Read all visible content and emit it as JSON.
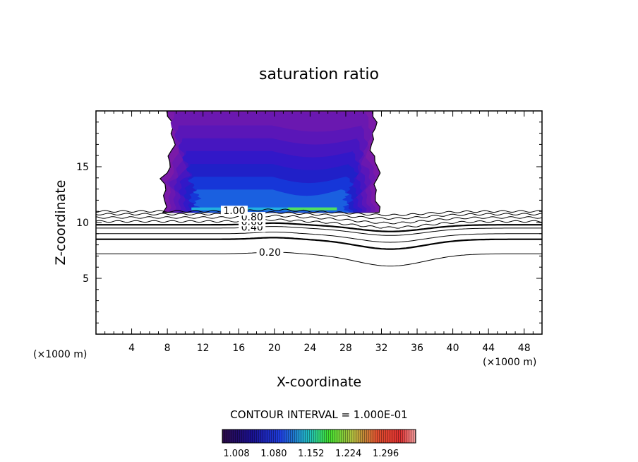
{
  "chart_data": {
    "type": "contour",
    "title": "saturation ratio",
    "xlabel": "X-coordinate",
    "ylabel": "Z-coordinate",
    "x_unit_left": "(×1000 m)",
    "x_unit_right": "(×1000 m)",
    "xlim": [
      0,
      50
    ],
    "ylim": [
      0,
      20
    ],
    "x_ticks": [
      4,
      8,
      12,
      16,
      20,
      24,
      28,
      32,
      36,
      40,
      44,
      48
    ],
    "y_ticks": [
      5,
      10,
      15
    ],
    "contour_interval_label": "CONTOUR INTERVAL = 1.000E-01",
    "contour_lines": [
      {
        "label": "0.20",
        "base_z": 7.2,
        "dip": 1.0,
        "bold": false
      },
      {
        "label": "",
        "base_z": 8.5,
        "dip": 0.8,
        "bold": true
      },
      {
        "label": "",
        "base_z": 9.0,
        "dip": 0.7,
        "bold": false
      },
      {
        "label": "0.40",
        "base_z": 9.5,
        "dip": 0.6,
        "bold": false
      },
      {
        "label": "",
        "base_z": 9.8,
        "dip": 0.55,
        "bold": true
      },
      {
        "label": "0.60",
        "base_z": 10.1,
        "dip": 0.5,
        "bold": false
      },
      {
        "label": "0.80",
        "base_z": 10.45,
        "dip": 0.45,
        "bold": false
      },
      {
        "label": "",
        "base_z": 10.75,
        "dip": 0.35,
        "bold": false
      },
      {
        "label": "1.00",
        "base_z": 11.0,
        "dip": 0.3,
        "bold": false
      }
    ],
    "supersaturation_region": {
      "x_range": [
        7.5,
        31.5
      ],
      "z_range": [
        10.9,
        20
      ]
    },
    "colorbar": {
      "ticks": [
        "1.008",
        "1.080",
        "1.152",
        "1.224",
        "1.296"
      ],
      "colors": [
        "#2a0a45",
        "#1a1090",
        "#1f3ee0",
        "#22c0c0",
        "#40e030",
        "#c0e030",
        "#e09030",
        "#e03030",
        "#f0a0a0"
      ]
    }
  }
}
